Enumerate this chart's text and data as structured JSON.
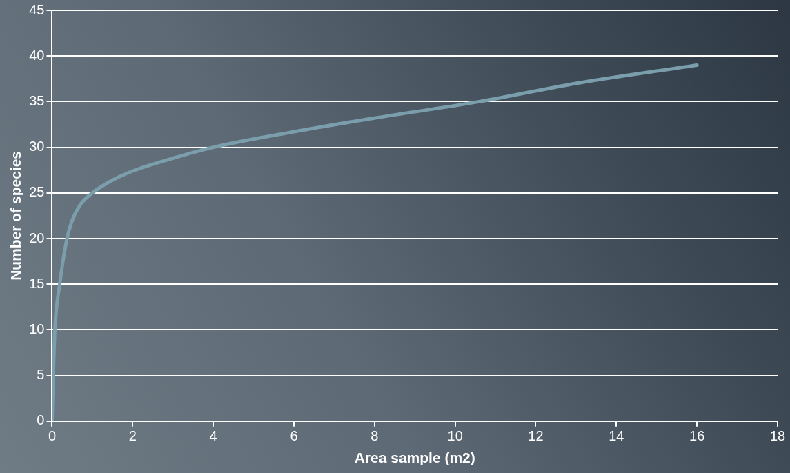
{
  "chart_data": {
    "type": "line",
    "xlabel": "Area sample (m2)",
    "ylabel": "Number of species",
    "x": [
      0,
      0.03,
      0.07,
      0.19,
      0.37,
      0.5,
      0.7,
      1,
      1.5,
      2,
      3,
      4,
      6,
      8,
      10.6,
      13,
      16
    ],
    "series": [
      {
        "color": "#7a9eab",
        "values": [
          0,
          5,
          10,
          15,
          20,
          22,
          23.7,
          25,
          26.4,
          27.4,
          28.8,
          30,
          31.7,
          33.2,
          35,
          37,
          39
        ]
      }
    ],
    "xlim": [
      0,
      18
    ],
    "xticks": [
      0,
      2,
      4,
      6,
      8,
      10,
      12,
      14,
      16,
      18
    ],
    "ylim": [
      0,
      45
    ],
    "yticks": [
      0,
      5,
      10,
      15,
      20,
      25,
      30,
      35,
      40,
      45
    ],
    "grid": "y",
    "legend": false,
    "marker": "none",
    "line_style": "solid"
  }
}
